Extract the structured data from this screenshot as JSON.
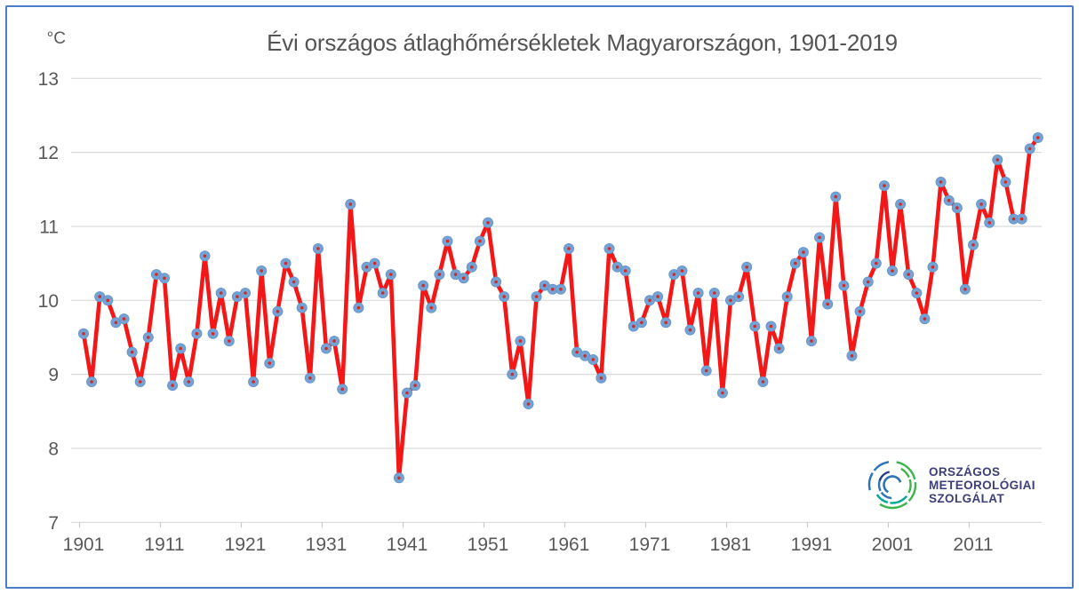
{
  "frame": {
    "border_color": "#4a7cc7"
  },
  "chart_data": {
    "type": "line",
    "title": "Évi országos átlaghőmérsékletek Magyarországon, 1901-2019",
    "unit_label": "°C",
    "x_start": 1901,
    "x_end": 2019,
    "x_tick_labels": [
      "1901",
      "1911",
      "1921",
      "1931",
      "1941",
      "1951",
      "1961",
      "1971",
      "1981",
      "1991",
      "2001",
      "2011"
    ],
    "y_ticks": [
      13,
      12,
      11,
      10,
      9,
      8,
      7
    ],
    "ylim": [
      7,
      13
    ],
    "grid": true,
    "legend": "none",
    "series": [
      {
        "name": "Évi országos átlaghőmérséklet (°C)",
        "values": [
          9.55,
          8.9,
          10.05,
          10.0,
          9.7,
          9.75,
          9.3,
          8.9,
          9.5,
          10.35,
          10.3,
          8.85,
          9.35,
          8.9,
          9.55,
          10.6,
          9.55,
          10.1,
          9.45,
          10.05,
          10.1,
          8.9,
          10.4,
          9.15,
          9.85,
          10.5,
          10.25,
          9.9,
          8.95,
          10.7,
          9.35,
          9.45,
          8.8,
          11.3,
          9.9,
          10.45,
          10.5,
          10.1,
          10.35,
          7.6,
          8.75,
          8.85,
          10.2,
          9.9,
          10.35,
          10.8,
          10.35,
          10.3,
          10.45,
          10.8,
          11.05,
          10.25,
          10.05,
          9.0,
          9.45,
          8.6,
          10.05,
          10.2,
          10.15,
          10.15,
          10.7,
          9.3,
          9.25,
          9.2,
          8.95,
          10.7,
          10.45,
          10.4,
          9.65,
          9.7,
          10.0,
          10.05,
          9.7,
          10.35,
          10.4,
          9.6,
          10.1,
          9.05,
          10.1,
          8.75,
          10.0,
          10.05,
          10.45,
          9.65,
          8.9,
          9.65,
          9.35,
          10.05,
          10.5,
          10.65,
          9.45,
          10.85,
          9.95,
          11.4,
          10.2,
          9.25,
          9.85,
          10.25,
          10.5,
          11.55,
          10.4,
          11.3,
          10.35,
          10.1,
          9.75,
          10.45,
          11.6,
          11.35,
          11.25,
          10.15,
          10.75,
          11.3,
          11.05,
          11.9,
          11.6,
          11.1,
          11.1,
          12.05,
          12.2
        ]
      }
    ],
    "line_color": "#f41717",
    "marker_fill": "#76a2d3",
    "marker_edge": "#6394c9",
    "marker_dot_color": "#cf2b28",
    "gridline_color": "#d9d9d9",
    "tick_color": "#c9c9c9",
    "axis_text_color": "#595959"
  },
  "logo": {
    "lines": [
      "ORSZÁGOS",
      "METEOROLÓGIAI",
      "SZOLGÁLAT"
    ],
    "text_color": "#3b3e79",
    "swirl_colors": [
      "#3db54a",
      "#00a79b",
      "#2d73b9",
      "#2c3f8f"
    ]
  }
}
